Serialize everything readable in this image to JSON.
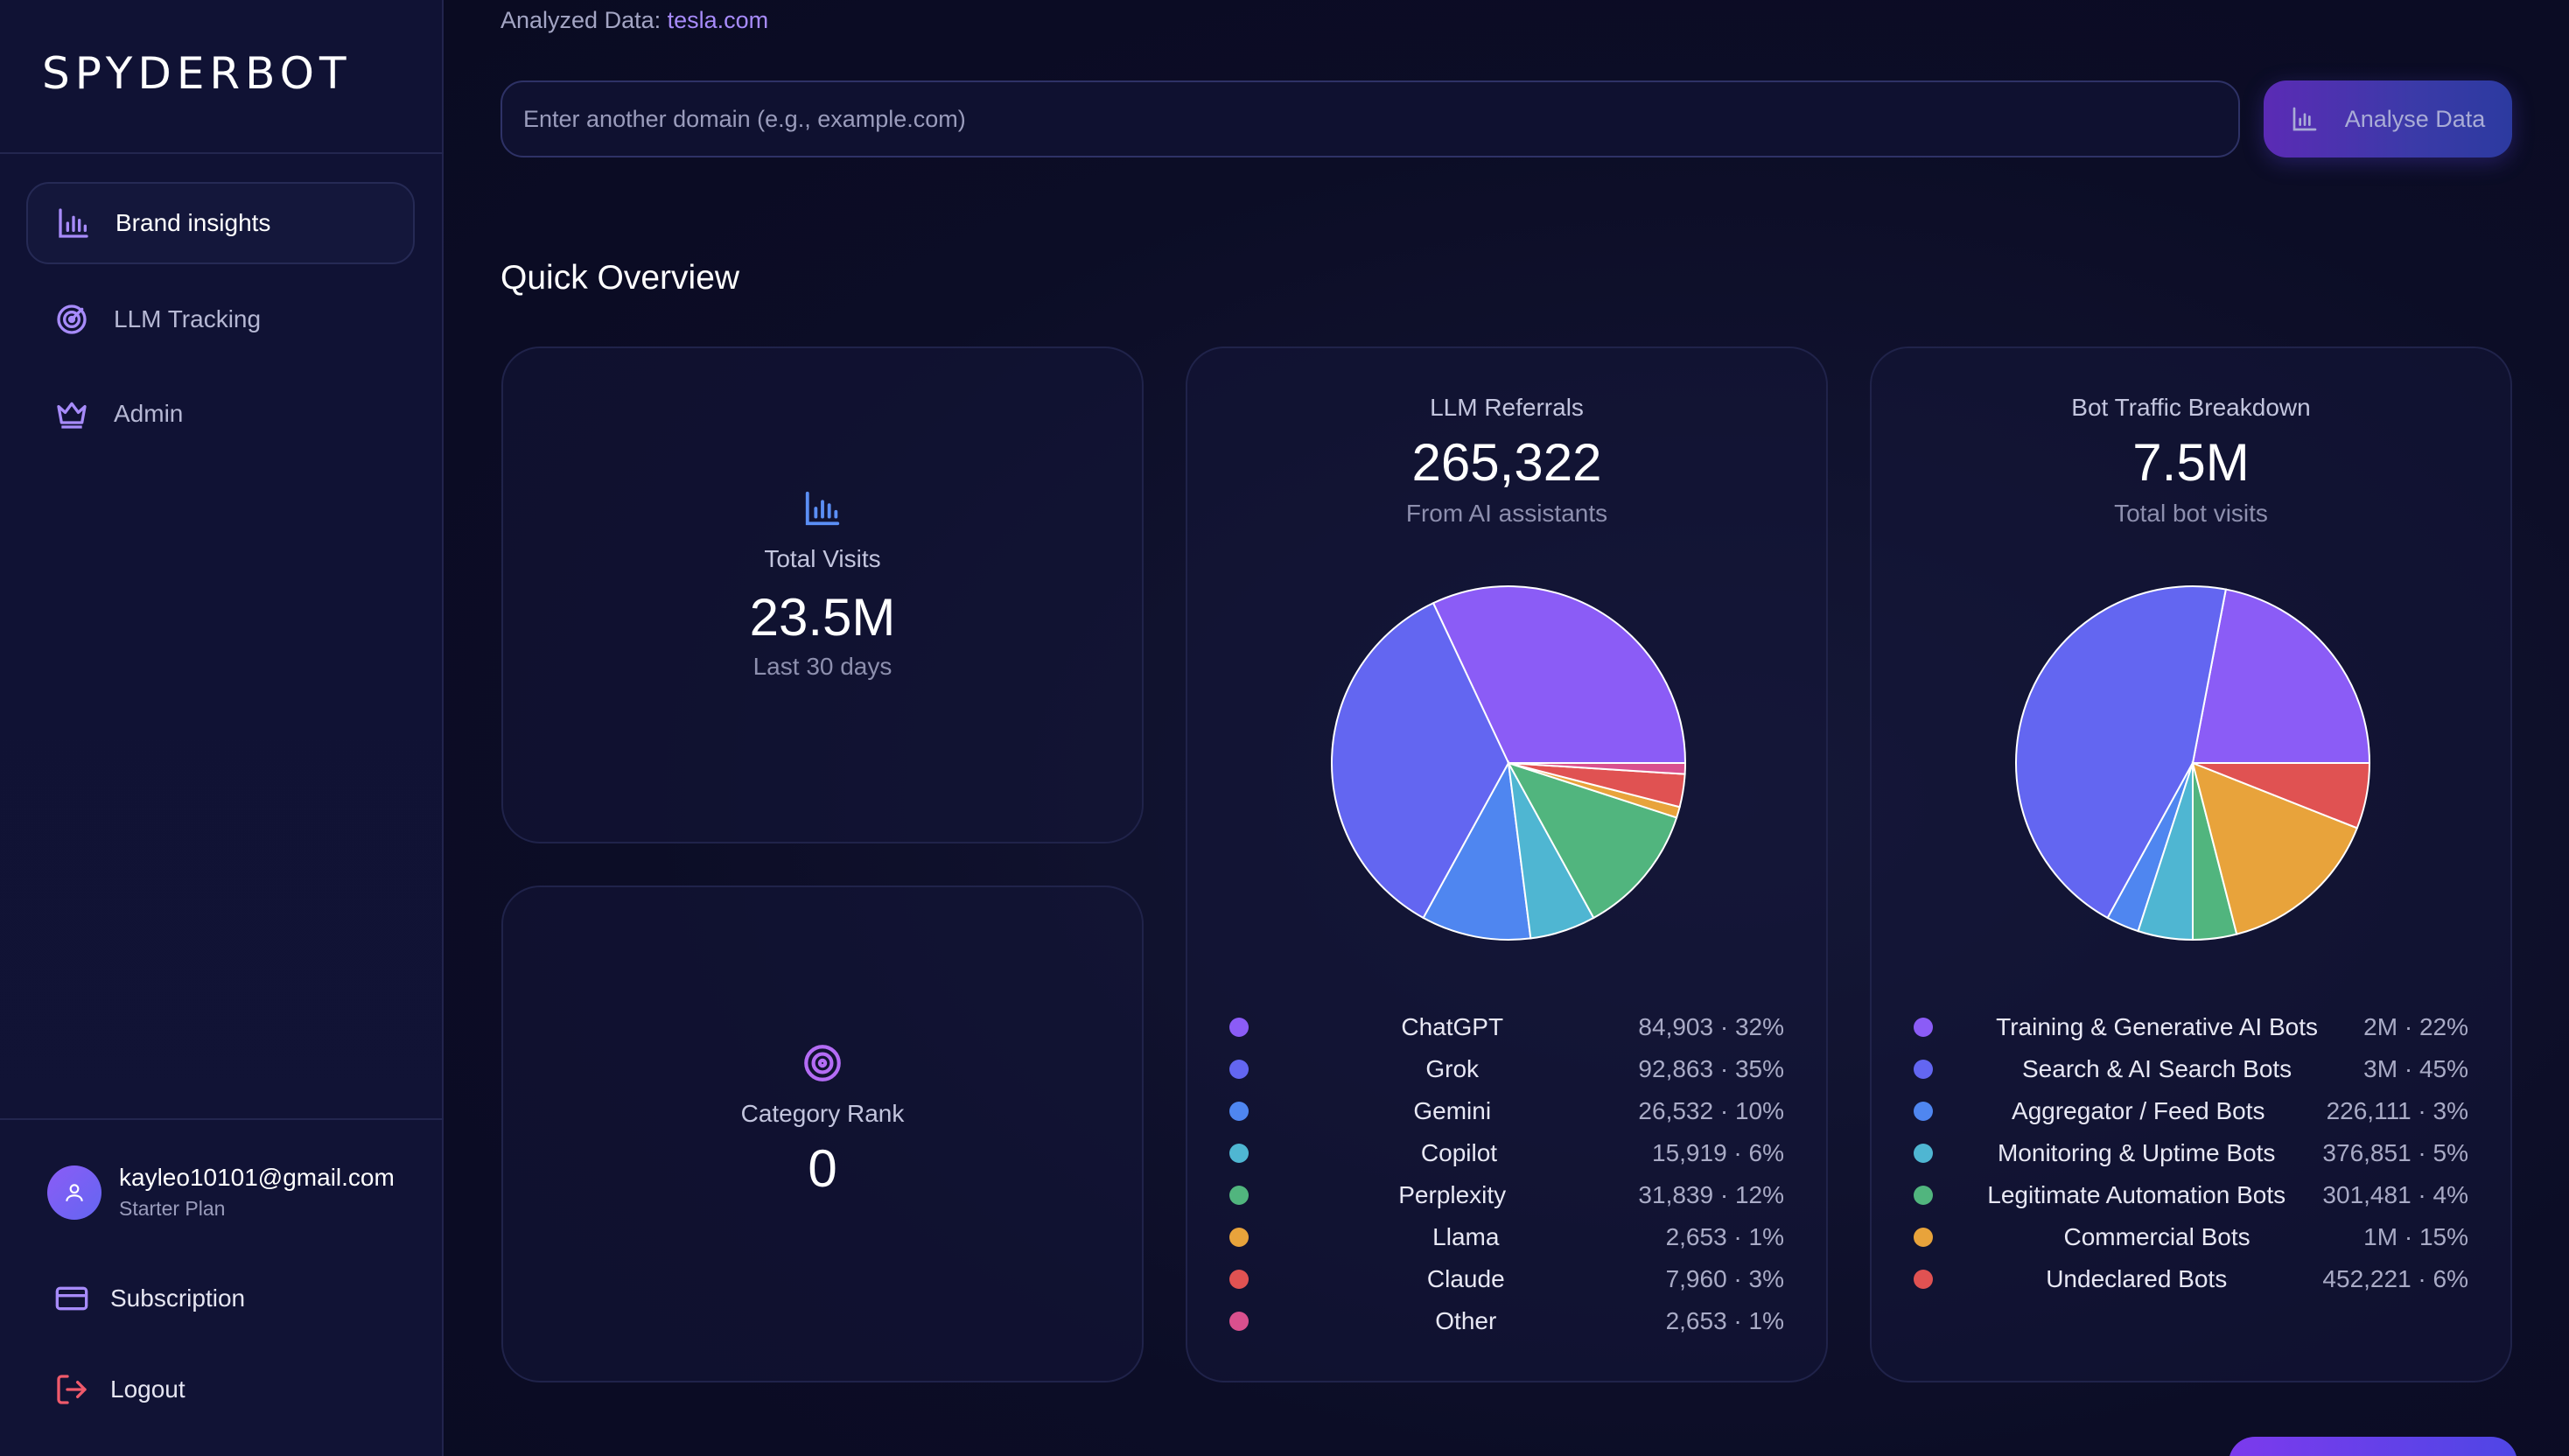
{
  "app": {
    "logo": "SPYDERBOT"
  },
  "sidebar": {
    "items": [
      {
        "label": "Brand insights",
        "icon": "bar-chart-icon",
        "active": true
      },
      {
        "label": "LLM Tracking",
        "icon": "radar-icon",
        "active": false
      },
      {
        "label": "Admin",
        "icon": "crown-icon",
        "active": false
      }
    ],
    "user": {
      "email": "kayleo10101@gmail.com",
      "plan": "Starter Plan"
    },
    "subscription_label": "Subscription",
    "logout_label": "Logout"
  },
  "header": {
    "analyzed_label": "Analyzed Data:",
    "analyzed_domain": "tesla.com",
    "search_placeholder": "Enter another domain (e.g., example.com)",
    "analyse_button": "Analyse Data"
  },
  "overview": {
    "title": "Quick Overview",
    "total_visits": {
      "label": "Total Visits",
      "value": "23.5M",
      "sub": "Last 30 days"
    },
    "category_rank": {
      "label": "Category Rank",
      "value": "0"
    }
  },
  "colors": {
    "purple": "#8b5cf6",
    "indigo": "#6366f1",
    "blue": "#4f86f0",
    "cyan": "#4fb6d2",
    "green": "#51b57e",
    "orange": "#e8a33b",
    "red": "#e05252",
    "pink": "#d9508e"
  },
  "chart_data": [
    {
      "type": "pie",
      "title": "LLM Referrals",
      "headline": "265,322",
      "subtitle": "From AI assistants",
      "slices": [
        {
          "name": "ChatGPT",
          "value": 84903,
          "display": "84,903 · 32%",
          "color": "#8b5cf6"
        },
        {
          "name": "Grok",
          "value": 92863,
          "display": "92,863 · 35%",
          "color": "#6366f1"
        },
        {
          "name": "Gemini",
          "value": 26532,
          "display": "26,532 · 10%",
          "color": "#4f86f0"
        },
        {
          "name": "Copilot",
          "value": 15919,
          "display": "15,919 · 6%",
          "color": "#4fb6d2"
        },
        {
          "name": "Perplexity",
          "value": 31839,
          "display": "31,839 · 12%",
          "color": "#51b57e"
        },
        {
          "name": "Llama",
          "value": 2653,
          "display": "2,653 · 1%",
          "color": "#e8a33b"
        },
        {
          "name": "Claude",
          "value": 7960,
          "display": "7,960 · 3%",
          "color": "#e05252"
        },
        {
          "name": "Other",
          "value": 2653,
          "display": "2,653 · 1%",
          "color": "#d9508e"
        }
      ]
    },
    {
      "type": "pie",
      "title": "Bot Traffic Breakdown",
      "headline": "7.5M",
      "subtitle": "Total bot visits",
      "slices": [
        {
          "name": "Training & Generative AI Bots",
          "value": 22,
          "display": "2M · 22%",
          "color": "#8b5cf6"
        },
        {
          "name": "Search & AI Search Bots",
          "value": 45,
          "display": "3M · 45%",
          "color": "#6366f1"
        },
        {
          "name": "Aggregator / Feed Bots",
          "value": 3,
          "display": "226,111 · 3%",
          "color": "#4f86f0"
        },
        {
          "name": "Monitoring & Uptime Bots",
          "value": 5,
          "display": "376,851 · 5%",
          "color": "#4fb6d2"
        },
        {
          "name": "Legitimate Automation Bots",
          "value": 4,
          "display": "301,481 · 4%",
          "color": "#51b57e"
        },
        {
          "name": "Commercial Bots",
          "value": 15,
          "display": "1M · 15%",
          "color": "#e8a33b"
        },
        {
          "name": "Undeclared Bots",
          "value": 6,
          "display": "452,221 · 6%",
          "color": "#e05252"
        }
      ]
    }
  ]
}
